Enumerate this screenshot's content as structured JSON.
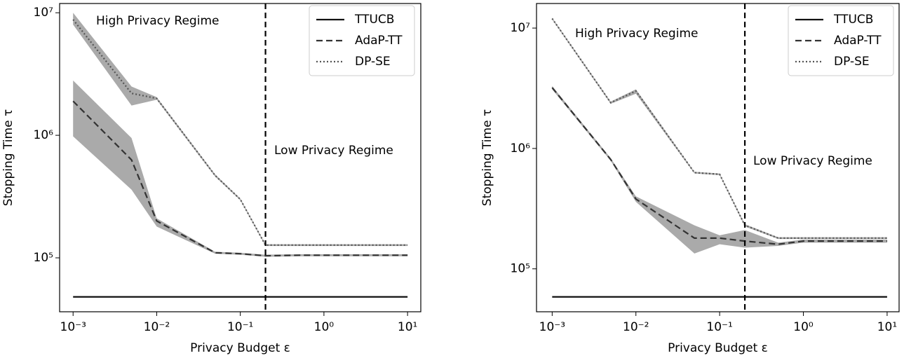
{
  "chart_data": [
    {
      "type": "line",
      "xscale": "log",
      "yscale": "log",
      "xlabel": "Privacy Budget ε",
      "ylabel": "Stopping Time τ",
      "xlim": [
        0.00069,
        14.4
      ],
      "ylim": [
        36300,
        11900000
      ],
      "xticks": [
        {
          "value": 0.001,
          "label": "10⁻³"
        },
        {
          "value": 0.01,
          "label": "10⁻²"
        },
        {
          "value": 0.1,
          "label": "10⁻¹"
        },
        {
          "value": 1,
          "label": "10⁰"
        },
        {
          "value": 10,
          "label": "10¹"
        }
      ],
      "yticks": [
        {
          "value": 100000,
          "label": "10⁵"
        },
        {
          "value": 1000000,
          "label": "10⁶"
        },
        {
          "value": 10000000,
          "label": "10⁷"
        }
      ],
      "x": [
        0.001,
        0.005,
        0.01,
        0.05,
        0.1,
        0.2,
        0.5,
        1,
        10
      ],
      "series": [
        {
          "name": "TTUCB",
          "color": "#111111",
          "dash": "solid",
          "values": [
            48000,
            48000,
            48000,
            48000,
            48000,
            48000,
            48000,
            48000,
            48000
          ]
        },
        {
          "name": "AdaP-TT",
          "color": "#333333",
          "dash": "dashed",
          "values": [
            1900000,
            630000,
            200000,
            110000,
            108000,
            104000,
            105000,
            105000,
            105000
          ],
          "lower": [
            980000,
            360000,
            180000,
            108000,
            106000,
            102000,
            103000,
            103000,
            103000
          ],
          "upper": [
            2800000,
            950000,
            210000,
            112000,
            110000,
            106000,
            107000,
            107000,
            107000
          ]
        },
        {
          "name": "DP-SE",
          "color": "#555555",
          "dash": "dotted",
          "values": [
            8800000,
            2200000,
            2000000,
            470000,
            300000,
            127000,
            127000,
            127000,
            127000
          ],
          "lower": [
            8000000,
            1750000,
            1950000,
            460000,
            295000,
            125000,
            125000,
            125000,
            125000
          ],
          "upper": [
            10000000,
            2500000,
            2050000,
            480000,
            305000,
            129000,
            129000,
            129000,
            129000
          ]
        }
      ],
      "vline": 0.2,
      "annotations": [
        "High Privacy Regime",
        "Low Privacy Regime"
      ],
      "legend": "upper right"
    },
    {
      "type": "line",
      "xscale": "log",
      "yscale": "log",
      "xlabel": "Privacy Budget ε",
      "ylabel": "Stopping Time τ",
      "xlim": [
        0.00065,
        13.9
      ],
      "ylim": [
        44000,
        16000000
      ],
      "xticks": [
        {
          "value": 0.001,
          "label": "10⁻³"
        },
        {
          "value": 0.01,
          "label": "10⁻²"
        },
        {
          "value": 0.1,
          "label": "10⁻¹"
        },
        {
          "value": 1,
          "label": "10⁰"
        },
        {
          "value": 10,
          "label": "10¹"
        }
      ],
      "yticks": [
        {
          "value": 100000,
          "label": "10⁵"
        },
        {
          "value": 1000000,
          "label": "10⁶"
        },
        {
          "value": 10000000,
          "label": "10⁷"
        }
      ],
      "x": [
        0.001,
        0.005,
        0.01,
        0.05,
        0.1,
        0.2,
        0.5,
        1,
        10
      ],
      "series": [
        {
          "name": "TTUCB",
          "color": "#111111",
          "dash": "solid",
          "values": [
            58500,
            58500,
            58500,
            58500,
            58500,
            58500,
            58500,
            58500,
            58500
          ]
        },
        {
          "name": "AdaP-TT",
          "color": "#333333",
          "dash": "dashed",
          "values": [
            3200000,
            810000,
            380000,
            180000,
            180000,
            170000,
            160000,
            170000,
            170000
          ],
          "lower": [
            3100000,
            790000,
            360000,
            134000,
            160000,
            150000,
            155000,
            165000,
            165000
          ],
          "upper": [
            3300000,
            830000,
            400000,
            230000,
            190000,
            210000,
            165000,
            175000,
            175000
          ]
        },
        {
          "name": "DP-SE",
          "color": "#555555",
          "dash": "dotted",
          "values": [
            12000000,
            2400000,
            3000000,
            630000,
            610000,
            230000,
            180000,
            180000,
            180000
          ],
          "lower": [
            11800000,
            2350000,
            2850000,
            620000,
            600000,
            225000,
            177000,
            177000,
            177000
          ],
          "upper": [
            12200000,
            2450000,
            3100000,
            640000,
            620000,
            235000,
            183000,
            183000,
            183000
          ]
        }
      ],
      "vline": 0.2,
      "annotations": [
        "High Privacy Regime",
        "Low Privacy Regime"
      ],
      "legend": "upper right"
    }
  ]
}
